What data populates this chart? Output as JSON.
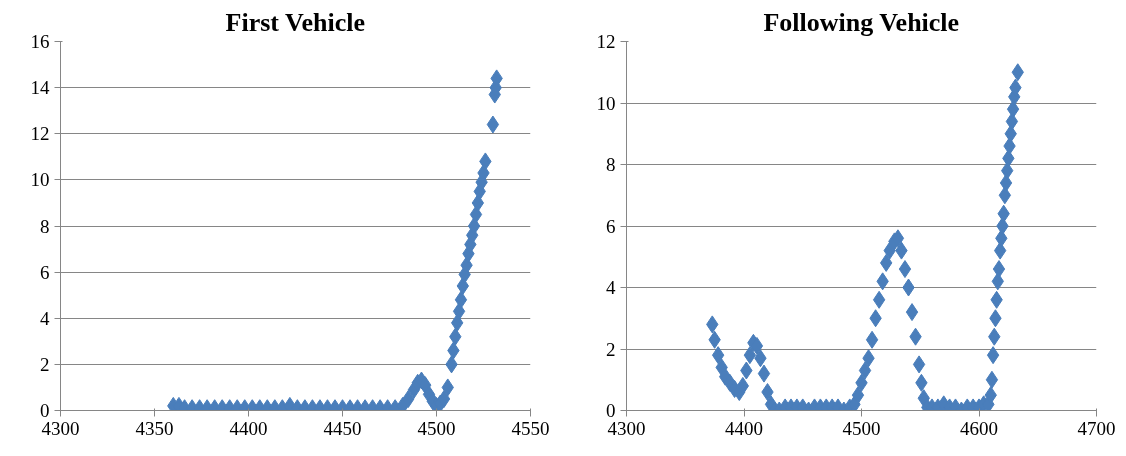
{
  "chart_data": [
    {
      "type": "scatter",
      "title": "First Vehicle",
      "color": "#4a7ebb",
      "marker": "diamond",
      "grid": "y",
      "xlim": [
        4300,
        4550
      ],
      "xticks": [
        4300,
        4350,
        4400,
        4450,
        4500,
        4550
      ],
      "ylim": [
        0,
        16
      ],
      "yticks": [
        0,
        2,
        4,
        6,
        8,
        10,
        12,
        14,
        16
      ],
      "x": [
        4360,
        4363,
        4366,
        4370,
        4374,
        4378,
        4382,
        4386,
        4390,
        4394,
        4398,
        4402,
        4406,
        4410,
        4414,
        4418,
        4422,
        4426,
        4430,
        4434,
        4438,
        4442,
        4446,
        4450,
        4454,
        4458,
        4462,
        4466,
        4470,
        4474,
        4478,
        4482,
        4485,
        4488,
        4490,
        4492,
        4494,
        4496,
        4498,
        4500,
        4502,
        4504,
        4506,
        4508,
        4509,
        4510,
        4511,
        4512,
        4513,
        4514,
        4515,
        4516,
        4517,
        4518,
        4519,
        4520,
        4521,
        4522,
        4523,
        4524,
        4525,
        4526,
        4530,
        4531,
        4531.5,
        4532
      ],
      "values": [
        0.2,
        0.2,
        0.1,
        0.1,
        0.1,
        0.1,
        0.1,
        0.1,
        0.1,
        0.1,
        0.1,
        0.1,
        0.1,
        0.1,
        0.1,
        0.1,
        0.2,
        0.1,
        0.1,
        0.1,
        0.1,
        0.1,
        0.1,
        0.1,
        0.1,
        0.1,
        0.1,
        0.1,
        0.1,
        0.1,
        0.1,
        0.2,
        0.5,
        0.9,
        1.2,
        1.3,
        1.1,
        0.7,
        0.4,
        0.2,
        0.3,
        0.5,
        1.0,
        2.0,
        2.6,
        3.2,
        3.8,
        4.3,
        4.8,
        5.4,
        5.9,
        6.3,
        6.8,
        7.2,
        7.6,
        8.0,
        8.5,
        9.0,
        9.5,
        9.9,
        10.3,
        10.8,
        12.4,
        13.7,
        14.0,
        14.4
      ]
    },
    {
      "type": "scatter",
      "title": "Following Vehicle",
      "color": "#4a7ebb",
      "marker": "diamond",
      "grid": "y",
      "xlim": [
        4300,
        4700
      ],
      "xticks": [
        4300,
        4400,
        4500,
        4600,
        4700
      ],
      "ylim": [
        0,
        12
      ],
      "yticks": [
        0,
        2,
        4,
        6,
        8,
        10,
        12
      ],
      "x": [
        4373,
        4375,
        4378,
        4381,
        4384,
        4388,
        4392,
        4396,
        4399,
        4402,
        4405,
        4408,
        4411,
        4414,
        4417,
        4420,
        4423,
        4426,
        4430,
        4435,
        4440,
        4445,
        4450,
        4455,
        4460,
        4465,
        4470,
        4475,
        4480,
        4485,
        4490,
        4494,
        4497,
        4500,
        4503,
        4506,
        4509,
        4512,
        4515,
        4518,
        4521,
        4524,
        4528,
        4531,
        4534,
        4537,
        4540,
        4543,
        4546,
        4549,
        4551,
        4553,
        4556,
        4560,
        4565,
        4570,
        4575,
        4580,
        4585,
        4590,
        4595,
        4600,
        4604,
        4608,
        4610,
        4611,
        4612,
        4613,
        4614,
        4615,
        4616,
        4617,
        4618,
        4619,
        4620,
        4621,
        4622,
        4623,
        4624,
        4625,
        4626,
        4627,
        4628,
        4629,
        4630,
        4631,
        4633
      ],
      "values": [
        2.8,
        2.3,
        1.8,
        1.4,
        1.1,
        0.9,
        0.7,
        0.6,
        0.8,
        1.3,
        1.8,
        2.2,
        2.1,
        1.7,
        1.2,
        0.6,
        0.2,
        0.0,
        0.0,
        0.1,
        0.1,
        0.1,
        0.1,
        0.0,
        0.1,
        0.1,
        0.1,
        0.1,
        0.1,
        0.0,
        0.1,
        0.2,
        0.5,
        0.9,
        1.3,
        1.7,
        2.3,
        3.0,
        3.6,
        4.2,
        4.8,
        5.2,
        5.5,
        5.6,
        5.2,
        4.6,
        4.0,
        3.2,
        2.4,
        1.5,
        0.9,
        0.4,
        0.1,
        0.1,
        0.1,
        0.2,
        0.1,
        0.1,
        0.0,
        0.1,
        0.1,
        0.1,
        0.2,
        0.2,
        0.5,
        1.0,
        1.8,
        2.4,
        3.0,
        3.6,
        4.2,
        4.6,
        5.2,
        5.6,
        6.0,
        6.4,
        7.0,
        7.4,
        7.8,
        8.2,
        8.6,
        9.0,
        9.4,
        9.8,
        10.2,
        10.5,
        11.0
      ]
    }
  ]
}
